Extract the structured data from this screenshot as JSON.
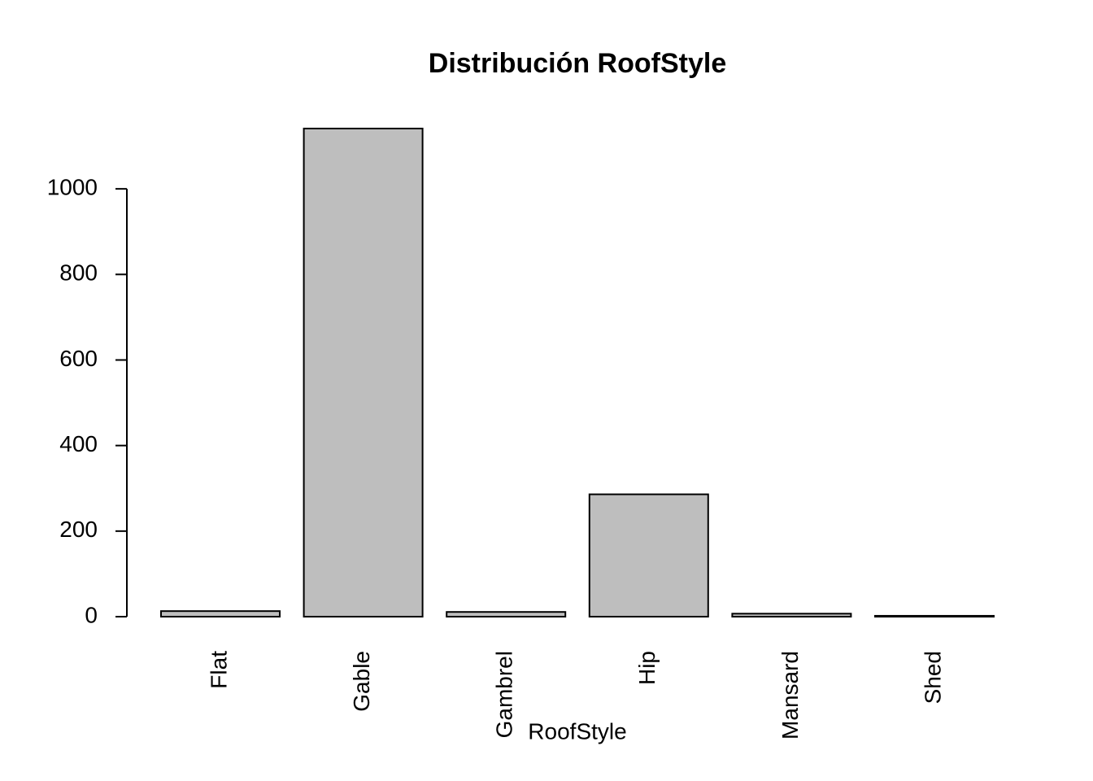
{
  "chart_data": {
    "type": "bar",
    "title": "Distribución RoofStyle",
    "x_label": "RoofStyle",
    "categories": [
      "Flat",
      "Gable",
      "Gambrel",
      "Hip",
      "Mansard",
      "Shed"
    ],
    "values": [
      13,
      1141,
      11,
      286,
      7,
      2
    ],
    "color": "#bebebe",
    "ylim": [
      0,
      1141
    ],
    "yticks": [
      0,
      200,
      400,
      600,
      800,
      1000
    ],
    "grid": false
  }
}
